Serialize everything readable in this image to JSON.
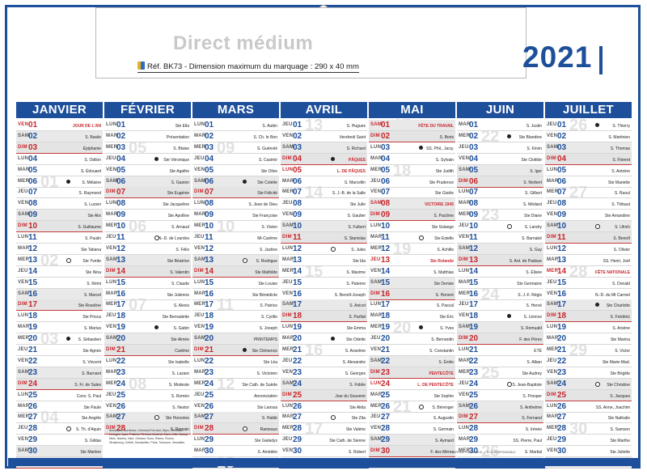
{
  "header": {
    "brand_title": "Direct médium",
    "ref_line": "Réf. BK73 - Dimension maximum du marquage : 290 x 40 mm",
    "year": "2021"
  },
  "colors": {
    "primary": "#1d4f9a",
    "holiday": "#c8262c",
    "weekend_shade": "#e9e9e9"
  },
  "legend": "Besançon, Bordeaux, Clermont-Ferrand, Dijon, Grenoble, Limoges, Lyon, Poitiers, Rennes, Amiens, Caen, Lille, Nancy-Metz, Nantes, Nice, Orléans-Tours, Reims, Rouen, Strasbourg, Créteil, Montpellier, Paris, Toulouse, Versailles",
  "footer_note": "IMPRIMÉ EN FRANCE — ÉCO-RESPONSABLE",
  "months": [
    {
      "name": "JANVIER",
      "first_dow": 4,
      "days": 31,
      "saints": [
        "JOUR DE L'AN",
        "S. Basile",
        "Épiphanie",
        "S. Odilon",
        "S. Édouard",
        "S. Mélaine",
        "S. Raymond",
        "S. Lucien",
        "Ste Alix",
        "S. Guillaume",
        "S. Paulin",
        "Ste Tatiana",
        "Ste Yvette",
        "Ste Nina",
        "S. Rémi",
        "S. Marcel",
        "Ste Roseline",
        "Ste Prisca",
        "S. Marius",
        "S. Sébastien",
        "Ste Agnès",
        "S. Vincent",
        "S. Barnard",
        "S. Fr. de Sales",
        "Conv. S. Paul",
        "Ste Paule",
        "Ste Angèle",
        "S. Th. d'Aquin",
        "S. Gildas",
        "Ste Martine",
        "Ste Marcelle"
      ],
      "holidays": [
        1
      ],
      "weeks": [
        {
          "n": "53",
          "d": 2
        },
        {
          "n": "01",
          "d": 6
        },
        {
          "n": "02",
          "d": 13
        },
        {
          "n": "03",
          "d": 20
        },
        {
          "n": "04",
          "d": 27
        }
      ],
      "moons": [
        6,
        13,
        20,
        28
      ]
    },
    {
      "name": "FÉVRIER",
      "first_dow": 0,
      "days": 28,
      "saints": [
        "Ste Ella",
        "Présentation",
        "S. Blaise",
        "Ste Véronique",
        "Ste Agathe",
        "S. Gaston",
        "Ste Eugénie",
        "Ste Jacqueline",
        "Ste Apolline",
        "S. Arnaud",
        "N.-D. de Lourdes",
        "S. Félix",
        "Ste Béatrice",
        "S. Valentin",
        "S. Claude",
        "Ste Julienne",
        "S. Alexis",
        "Ste Bernadette",
        "S. Gabin",
        "Ste Aimée",
        "Carême",
        "Ste Isabelle",
        "S. Lazare",
        "S. Modeste",
        "S. Roméo",
        "S. Nestor",
        "Ste Honorine",
        "S. Romain"
      ],
      "holidays": [],
      "weeks": [
        {
          "n": "05",
          "d": 3
        },
        {
          "n": "06",
          "d": 10
        },
        {
          "n": "07",
          "d": 17
        },
        {
          "n": "08",
          "d": 24
        }
      ],
      "moons": [
        4,
        11,
        19,
        27
      ]
    },
    {
      "name": "MARS",
      "first_dow": 0,
      "days": 31,
      "saints": [
        "S. Aubin",
        "S. Ch. le Bon",
        "S. Guénolé",
        "S. Casimir",
        "Ste Olive",
        "Ste Colette",
        "Ste Félicité",
        "S. Jean de Dieu",
        "Ste Françoise",
        "S. Vivien",
        "Mi-Carême",
        "S. Justine",
        "S. Rodrigue",
        "Ste Mathilde",
        "Ste Louise",
        "Ste Bénédicte",
        "S. Patrice",
        "S. Cyrille",
        "S. Joseph",
        "PRINTEMPS",
        "Ste Clémence",
        "Ste Léa",
        "S. Victorien",
        "Ste Cath. de Suède",
        "Annonciation",
        "Ste Larissa",
        "S. Habib",
        "Rameaux",
        "Ste Gwladys",
        "S. Amédée",
        "S. Benjamin"
      ],
      "holidays": [],
      "weeks": [
        {
          "n": "09",
          "d": 3
        },
        {
          "n": "10",
          "d": 10
        },
        {
          "n": "11",
          "d": 17
        },
        {
          "n": "12",
          "d": 24
        },
        {
          "n": "13",
          "d": 31
        }
      ],
      "moons": [
        6,
        13,
        21,
        28
      ]
    },
    {
      "name": "AVRIL",
      "first_dow": 3,
      "days": 30,
      "saints": [
        "S. Hugues",
        "Vendredi Saint",
        "S. Richard",
        "PÂQUES",
        "L. DE PÂQUES",
        "S. Marcellin",
        "S. J.-B. de la Salle",
        "Ste Julie",
        "S. Gautier",
        "S. Fulbert",
        "S. Stanislas",
        "S. Jules",
        "Ste Ida",
        "S. Maxime",
        "S. Paterne",
        "S. Benoît-Joseph",
        "S. Anicet",
        "S. Parfait",
        "Ste Emma",
        "Ste Odette",
        "S. Anselme",
        "S. Alexandre",
        "S. Georges",
        "S. Fidèle",
        "Jour du Souvenir",
        "Ste Alida",
        "Ste Zita",
        "Ste Valérie",
        "Ste Cath. de Sienne",
        "S. Robert"
      ],
      "holidays": [
        4,
        5
      ],
      "weeks": [
        {
          "n": "13",
          "d": 1
        },
        {
          "n": "14",
          "d": 7
        },
        {
          "n": "15",
          "d": 14
        },
        {
          "n": "16",
          "d": 21
        },
        {
          "n": "17",
          "d": 28
        }
      ],
      "moons": [
        4,
        12,
        20,
        27
      ]
    },
    {
      "name": "MAI",
      "first_dow": 5,
      "days": 31,
      "saints": [
        "FÊTE DU TRAVAIL",
        "S. Boris",
        "SS. Phil., Jacq.",
        "S. Sylvain",
        "Ste Judith",
        "Ste Prudence",
        "Ste Gisèle",
        "VICTOIRE 1945",
        "S. Pacôme",
        "Ste Solange",
        "Ste Estelle",
        "S. Achille",
        "Ste Rolande",
        "S. Matthias",
        "Ste Denise",
        "S. Honoré",
        "S. Pascal",
        "Ste Éric",
        "S. Yves",
        "S. Bernardin",
        "S. Constantin",
        "S. Émile",
        "PENTECÔTE",
        "L. DE PENTECÔTE",
        "Ste Sophie",
        "S. Bérenger",
        "S. Augustin",
        "S. Germain",
        "S. Aymard",
        "F. des Mères",
        "Visitation"
      ],
      "holidays": [
        1,
        8,
        13,
        23,
        24
      ],
      "weeks": [
        {
          "n": "17",
          "d": 1
        },
        {
          "n": "18",
          "d": 5
        },
        {
          "n": "19",
          "d": 12
        },
        {
          "n": "20",
          "d": 19
        },
        {
          "n": "21",
          "d": 26
        }
      ],
      "moons": [
        3,
        11,
        19,
        26
      ]
    },
    {
      "name": "JUIN",
      "first_dow": 1,
      "days": 30,
      "saints": [
        "S. Justin",
        "Ste Blandine",
        "S. Kévin",
        "Ste Clotilde",
        "S. Igor",
        "S. Norbert",
        "S. Gilbert",
        "S. Médard",
        "Ste Diane",
        "S. Landry",
        "S. Barnabé",
        "S. Guy",
        "S. Ant. de Padoue",
        "S. Élisée",
        "Ste Germaine",
        "S. J.-F. Régis",
        "S. Hervé",
        "S. Léonce",
        "S. Romuald",
        "F. des Pères",
        "ÉTÉ",
        "S. Alban",
        "Ste Audrey",
        "S. Jean-Baptiste",
        "S. Prosper",
        "S. Anthelme",
        "S. Fernand",
        "S. Irénée",
        "SS. Pierre, Paul",
        "S. Martial"
      ],
      "holidays": [],
      "weeks": [
        {
          "n": "22",
          "d": 2
        },
        {
          "n": "23",
          "d": 9
        },
        {
          "n": "24",
          "d": 16
        },
        {
          "n": "25",
          "d": 23
        },
        {
          "n": "26",
          "d": 30
        }
      ],
      "moons": [
        2,
        10,
        18,
        24
      ]
    },
    {
      "name": "JUILLET",
      "first_dow": 3,
      "days": 31,
      "saints": [
        "S. Thierry",
        "S. Martinien",
        "S. Thomas",
        "S. Florent",
        "S. Antoine",
        "Ste Mariette",
        "S. Raoul",
        "S. Thibaut",
        "Ste Amandine",
        "S. Ulrich",
        "S. Benoît",
        "S. Olivier",
        "SS. Henri, Joël",
        "FÊTE NATIONALE",
        "S. Donald",
        "N.-D. du Mt Carmel",
        "Ste Charlotte",
        "S. Frédéric",
        "S. Arsène",
        "Ste Marina",
        "S. Victor",
        "Ste Marie-Mad.",
        "Ste Brigitte",
        "Ste Christine",
        "S. Jacques",
        "SS. Anne, Joachim",
        "Ste Nathalie",
        "S. Samson",
        "Ste Marthe",
        "Ste Juliette",
        "S. Ignace de L."
      ],
      "holidays": [
        14
      ],
      "weeks": [
        {
          "n": "26",
          "d": 1
        },
        {
          "n": "27",
          "d": 7
        },
        {
          "n": "28",
          "d": 14
        },
        {
          "n": "29",
          "d": 21
        },
        {
          "n": "30",
          "d": 28
        }
      ],
      "moons": [
        1,
        10,
        17,
        24
      ]
    }
  ]
}
